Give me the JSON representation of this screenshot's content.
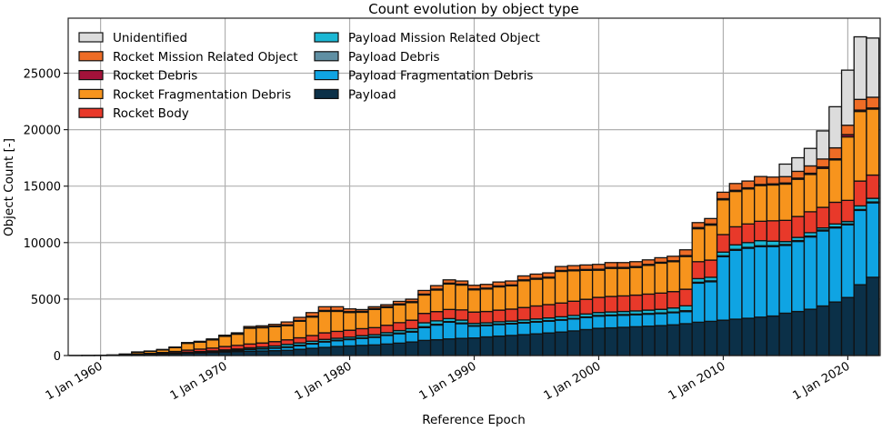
{
  "chart_data": {
    "type": "bar",
    "stacked": true,
    "title": "Count evolution by object type",
    "xlabel": "Reference Epoch",
    "ylabel": "Object Count [-]",
    "xlim": [
      1957.4,
      2022.6
    ],
    "ylim": [
      0,
      29870
    ],
    "grid": true,
    "legend_position": "top-left",
    "x_ticks": [
      1960,
      1970,
      1980,
      1990,
      2000,
      2010,
      2020
    ],
    "x_tick_labels": [
      "1 Jan 1960",
      "1 Jan 1970",
      "1 Jan 1980",
      "1 Jan 1990",
      "1 Jan 2000",
      "1 Jan 2010",
      "1 Jan 2020"
    ],
    "y_ticks": [
      0,
      5000,
      10000,
      15000,
      20000,
      25000
    ],
    "y_tick_labels": [
      "0",
      "5000",
      "10000",
      "15000",
      "20000",
      "25000"
    ],
    "categories": [
      1958,
      1959,
      1960,
      1961,
      1962,
      1963,
      1964,
      1965,
      1966,
      1967,
      1968,
      1969,
      1970,
      1971,
      1972,
      1973,
      1974,
      1975,
      1976,
      1977,
      1978,
      1979,
      1980,
      1981,
      1982,
      1983,
      1984,
      1985,
      1986,
      1987,
      1988,
      1989,
      1990,
      1991,
      1992,
      1993,
      1994,
      1995,
      1996,
      1997,
      1998,
      1999,
      2000,
      2001,
      2002,
      2003,
      2004,
      2005,
      2006,
      2007,
      2008,
      2009,
      2010,
      2011,
      2012,
      2013,
      2014,
      2015,
      2016,
      2017,
      2018,
      2019,
      2020,
      2021,
      2022
    ],
    "series": [
      {
        "name": "Payload",
        "color": "#0b3048",
        "values": [
          3,
          5,
          10,
          20,
          40,
          70,
          90,
          120,
          160,
          200,
          230,
          270,
          320,
          350,
          380,
          400,
          430,
          460,
          550,
          640,
          720,
          800,
          850,
          900,
          940,
          1020,
          1100,
          1200,
          1340,
          1400,
          1470,
          1520,
          1555,
          1650,
          1720,
          1780,
          1850,
          1920,
          2000,
          2080,
          2180,
          2300,
          2410,
          2450,
          2500,
          2550,
          2600,
          2650,
          2720,
          2820,
          2950,
          3030,
          3130,
          3220,
          3300,
          3400,
          3500,
          3750,
          3900,
          4100,
          4390,
          4740,
          5140,
          6270,
          6930
        ]
      },
      {
        "name": "Payload Fragmentation Debris",
        "color": "#0fa4e3",
        "values": [
          0,
          0,
          0,
          0,
          5,
          10,
          15,
          20,
          30,
          40,
          50,
          60,
          80,
          110,
          150,
          180,
          220,
          260,
          320,
          380,
          480,
          510,
          560,
          620,
          670,
          760,
          830,
          880,
          1130,
          1300,
          1480,
          1300,
          1045,
          1000,
          1020,
          1020,
          1030,
          1040,
          1040,
          1050,
          1060,
          1070,
          1080,
          1080,
          1070,
          1060,
          1060,
          1060,
          1070,
          1070,
          3460,
          3500,
          5620,
          6100,
          6200,
          6240,
          6150,
          6000,
          6200,
          6400,
          6640,
          6560,
          6430,
          6580,
          6590
        ]
      },
      {
        "name": "Payload Debris",
        "color": "#5f8fa3",
        "values": [
          0,
          0,
          0,
          0,
          0,
          5,
          5,
          10,
          10,
          10,
          15,
          15,
          20,
          20,
          30,
          30,
          40,
          50,
          50,
          50,
          50,
          50,
          50,
          50,
          50,
          50,
          60,
          60,
          80,
          70,
          60,
          60,
          50,
          50,
          50,
          50,
          50,
          50,
          50,
          50,
          50,
          50,
          60,
          60,
          60,
          60,
          60,
          60,
          60,
          80,
          80,
          80,
          80,
          80,
          80,
          80,
          80,
          80,
          80,
          80,
          80,
          80,
          80,
          80,
          80
        ]
      },
      {
        "name": "Payload Mission Related Object",
        "color": "#1bb7d4",
        "values": [
          0,
          0,
          0,
          0,
          5,
          15,
          20,
          30,
          40,
          50,
          55,
          65,
          80,
          100,
          120,
          140,
          160,
          220,
          200,
          200,
          180,
          170,
          170,
          190,
          190,
          200,
          220,
          240,
          350,
          300,
          260,
          260,
          200,
          200,
          200,
          200,
          220,
          230,
          240,
          250,
          260,
          260,
          260,
          270,
          270,
          280,
          300,
          320,
          360,
          430,
          320,
          320,
          330,
          400,
          420,
          450,
          400,
          260,
          280,
          300,
          190,
          270,
          220,
          320,
          320
        ]
      },
      {
        "name": "Rocket Body",
        "color": "#e8392a",
        "values": [
          2,
          3,
          5,
          10,
          20,
          50,
          60,
          90,
          120,
          180,
          220,
          250,
          300,
          320,
          340,
          360,
          380,
          400,
          450,
          500,
          580,
          610,
          610,
          620,
          620,
          650,
          700,
          750,
          830,
          820,
          810,
          900,
          1000,
          1000,
          1030,
          1060,
          1100,
          1150,
          1180,
          1220,
          1260,
          1300,
          1340,
          1370,
          1380,
          1400,
          1420,
          1440,
          1450,
          1470,
          1500,
          1520,
          1550,
          1600,
          1650,
          1720,
          1800,
          1880,
          1850,
          1850,
          1820,
          1920,
          1870,
          2200,
          2060
        ]
      },
      {
        "name": "Rocket Fragmentation Debris",
        "color": "#f7941d",
        "values": [
          0,
          0,
          3,
          15,
          50,
          150,
          180,
          230,
          340,
          600,
          610,
          720,
          900,
          990,
          1400,
          1350,
          1330,
          1260,
          1470,
          1640,
          1900,
          1770,
          1570,
          1450,
          1610,
          1570,
          1580,
          1560,
          1630,
          1910,
          2250,
          2200,
          1970,
          1990,
          2060,
          2060,
          2370,
          2370,
          2350,
          2800,
          2690,
          2560,
          2410,
          2490,
          2440,
          2450,
          2550,
          2650,
          2650,
          2900,
          2920,
          3100,
          3080,
          3130,
          3100,
          3160,
          3170,
          3210,
          3300,
          3300,
          3450,
          3750,
          5620,
          6160,
          5840
        ]
      },
      {
        "name": "Rocket Debris",
        "color": "#a3123a",
        "values": [
          0,
          0,
          0,
          0,
          0,
          5,
          5,
          10,
          10,
          20,
          20,
          20,
          20,
          30,
          30,
          40,
          50,
          60,
          60,
          70,
          80,
          80,
          80,
          80,
          80,
          80,
          80,
          80,
          80,
          80,
          80,
          80,
          80,
          80,
          80,
          80,
          80,
          80,
          80,
          80,
          80,
          80,
          80,
          80,
          80,
          80,
          80,
          80,
          80,
          80,
          100,
          100,
          100,
          100,
          100,
          100,
          100,
          100,
          100,
          110,
          130,
          100,
          200,
          120,
          100
        ]
      },
      {
        "name": "Rocket Mission Related Object",
        "color": "#ee6c26",
        "values": [
          0,
          2,
          2,
          5,
          10,
          15,
          25,
          30,
          40,
          50,
          60,
          70,
          80,
          90,
          120,
          130,
          150,
          260,
          280,
          320,
          330,
          330,
          240,
          160,
          160,
          170,
          230,
          220,
          320,
          310,
          290,
          280,
          320,
          330,
          350,
          350,
          350,
          370,
          380,
          350,
          380,
          400,
          430,
          430,
          430,
          430,
          400,
          400,
          400,
          510,
          440,
          480,
          570,
          600,
          600,
          700,
          600,
          560,
          600,
          650,
          700,
          970,
          830,
          950,
          950
        ]
      },
      {
        "name": "Unidentified",
        "color": "#dcdcdc",
        "values": [
          0,
          0,
          0,
          0,
          0,
          0,
          0,
          0,
          0,
          0,
          0,
          0,
          0,
          0,
          0,
          0,
          0,
          0,
          0,
          0,
          0,
          0,
          0,
          0,
          0,
          0,
          0,
          0,
          0,
          0,
          0,
          0,
          0,
          0,
          0,
          0,
          0,
          0,
          0,
          0,
          0,
          0,
          0,
          0,
          0,
          0,
          0,
          0,
          0,
          0,
          0,
          0,
          0,
          0,
          0,
          0,
          0,
          1110,
          1200,
          1550,
          2490,
          3640,
          4880,
          5540,
          5240
        ]
      }
    ],
    "legend": {
      "column_1": [
        "Unidentified",
        "Rocket Mission Related Object",
        "Rocket Debris",
        "Rocket Fragmentation Debris",
        "Rocket Body"
      ],
      "column_2": [
        "Payload Mission Related Object",
        "Payload Debris",
        "Payload Fragmentation Debris",
        "Payload"
      ]
    }
  }
}
